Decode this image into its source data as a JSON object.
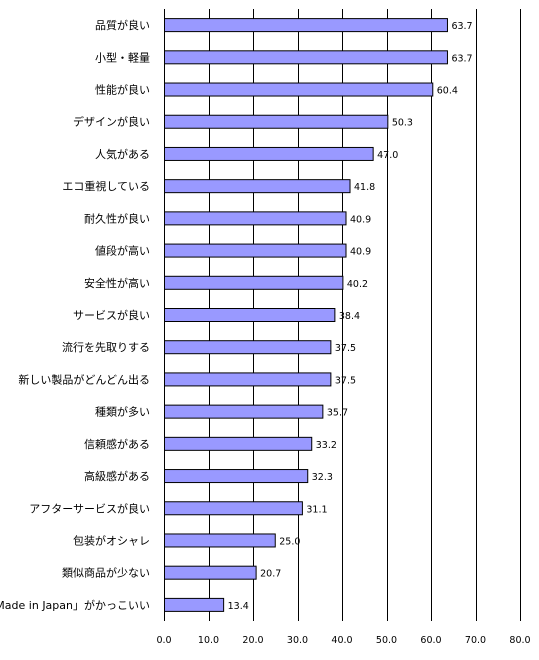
{
  "chart_data": {
    "type": "bar",
    "orientation": "horizontal",
    "categories": [
      "品質が良い",
      "小型・軽量",
      "性能が良い",
      "デザインが良い",
      "人気がある",
      "エコ重視している",
      "耐久性が良い",
      "値段が高い",
      "安全性が高い",
      "サービスが良い",
      "流行を先取りする",
      "新しい製品がどんどん出る",
      "種類が多い",
      "信頼感がある",
      "高級感がある",
      "アフターサービスが良い",
      "包装がオシャレ",
      "類似商品が少ない",
      "「Made in Japan」がかっこいい"
    ],
    "values": [
      63.7,
      63.7,
      60.4,
      50.3,
      47.0,
      41.8,
      40.9,
      40.9,
      40.2,
      38.4,
      37.5,
      37.5,
      35.7,
      33.2,
      32.3,
      31.1,
      25.0,
      20.7,
      13.4
    ],
    "value_labels": [
      "63.7",
      "63.7",
      "60.4",
      "50.3",
      "47.0",
      "41.8",
      "40.9",
      "40.9",
      "40.2",
      "38.4",
      "37.5",
      "37.5",
      "35.7",
      "33.2",
      "32.3",
      "31.1",
      "25.0",
      "20.7",
      "13.4"
    ],
    "xlim": [
      0,
      80
    ],
    "x_ticks": [
      0,
      10,
      20,
      30,
      40,
      50,
      60,
      70,
      80
    ],
    "x_tick_labels": [
      "0.0",
      "10.0",
      "20.0",
      "30.0",
      "40.0",
      "50.0",
      "60.0",
      "70.0",
      "80.0"
    ],
    "grid": "vertical",
    "legend": "none",
    "colors": {
      "bar_fill": "#9999ff",
      "bar_stroke": "#000000",
      "grid": "#000000",
      "background": "#ffffff"
    },
    "title": "",
    "xlabel": "",
    "ylabel": ""
  }
}
